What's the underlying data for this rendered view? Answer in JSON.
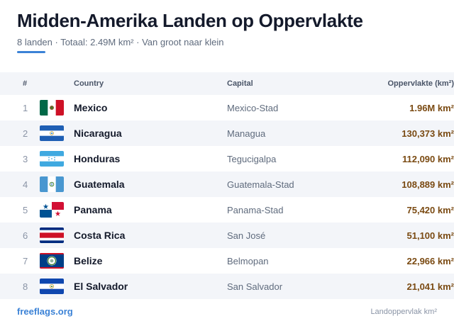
{
  "header": {
    "title": "Midden-Amerika Landen op Oppervlakte",
    "subtitle": "8 landen · Totaal: 2.49M km² · Van groot naar klein"
  },
  "table": {
    "columns": {
      "rank": "#",
      "country": "Country",
      "capital": "Capital",
      "area": "Oppervlakte (km²)"
    },
    "rows": [
      {
        "rank": "1",
        "country": "Mexico",
        "capital": "Mexico-Stad",
        "area": "1.96M km²",
        "flag": "mexico-flag-icon"
      },
      {
        "rank": "2",
        "country": "Nicaragua",
        "capital": "Managua",
        "area": "130,373 km²",
        "flag": "nicaragua-flag-icon"
      },
      {
        "rank": "3",
        "country": "Honduras",
        "capital": "Tegucigalpa",
        "area": "112,090 km²",
        "flag": "honduras-flag-icon"
      },
      {
        "rank": "4",
        "country": "Guatemala",
        "capital": "Guatemala-Stad",
        "area": "108,889 km²",
        "flag": "guatemala-flag-icon"
      },
      {
        "rank": "5",
        "country": "Panama",
        "capital": "Panama-Stad",
        "area": "75,420 km²",
        "flag": "panama-flag-icon"
      },
      {
        "rank": "6",
        "country": "Costa Rica",
        "capital": "San José",
        "area": "51,100 km²",
        "flag": "costa-rica-flag-icon"
      },
      {
        "rank": "7",
        "country": "Belize",
        "capital": "Belmopan",
        "area": "22,966 km²",
        "flag": "belize-flag-icon"
      },
      {
        "rank": "8",
        "country": "El Salvador",
        "capital": "San Salvador",
        "area": "21,041 km²",
        "flag": "el-salvador-flag-icon"
      }
    ]
  },
  "footer": {
    "brand": "freeflags.org",
    "note": "Landoppervlak km²"
  },
  "colors": {
    "accent": "#3b82d6",
    "area_text": "#7a4a12",
    "row_alt": "#f3f5f9"
  }
}
